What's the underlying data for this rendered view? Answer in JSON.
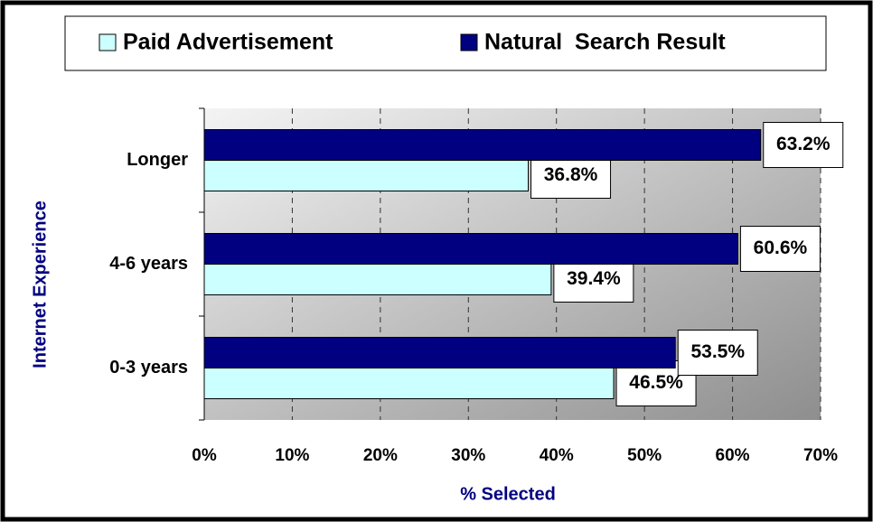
{
  "chart_data": {
    "type": "bar",
    "orientation": "horizontal",
    "x_label": "% Selected",
    "y_label": "Internet Experience",
    "categories": [
      "0-3 years",
      "4-6 years",
      "Longer"
    ],
    "series": [
      {
        "name": "Paid Advertisement",
        "color": "#ccffff",
        "values": [
          46.5,
          39.4,
          36.8
        ],
        "value_labels": [
          "46.5%",
          "39.4%",
          "36.8%"
        ]
      },
      {
        "name": "Natural  Search Result",
        "color": "#000080",
        "values": [
          53.5,
          60.6,
          63.2
        ],
        "value_labels": [
          "53.5%",
          "60.6%",
          "63.2%"
        ]
      }
    ],
    "xlim": [
      0,
      70
    ],
    "xticks": [
      {
        "value": 0,
        "label": "0%"
      },
      {
        "value": 10,
        "label": "10%"
      },
      {
        "value": 20,
        "label": "20%"
      },
      {
        "value": 30,
        "label": "30%"
      },
      {
        "value": 40,
        "label": "40%"
      },
      {
        "value": 50,
        "label": "50%"
      },
      {
        "value": 60,
        "label": "60%"
      },
      {
        "value": 70,
        "label": "70%"
      }
    ],
    "grid": true
  }
}
